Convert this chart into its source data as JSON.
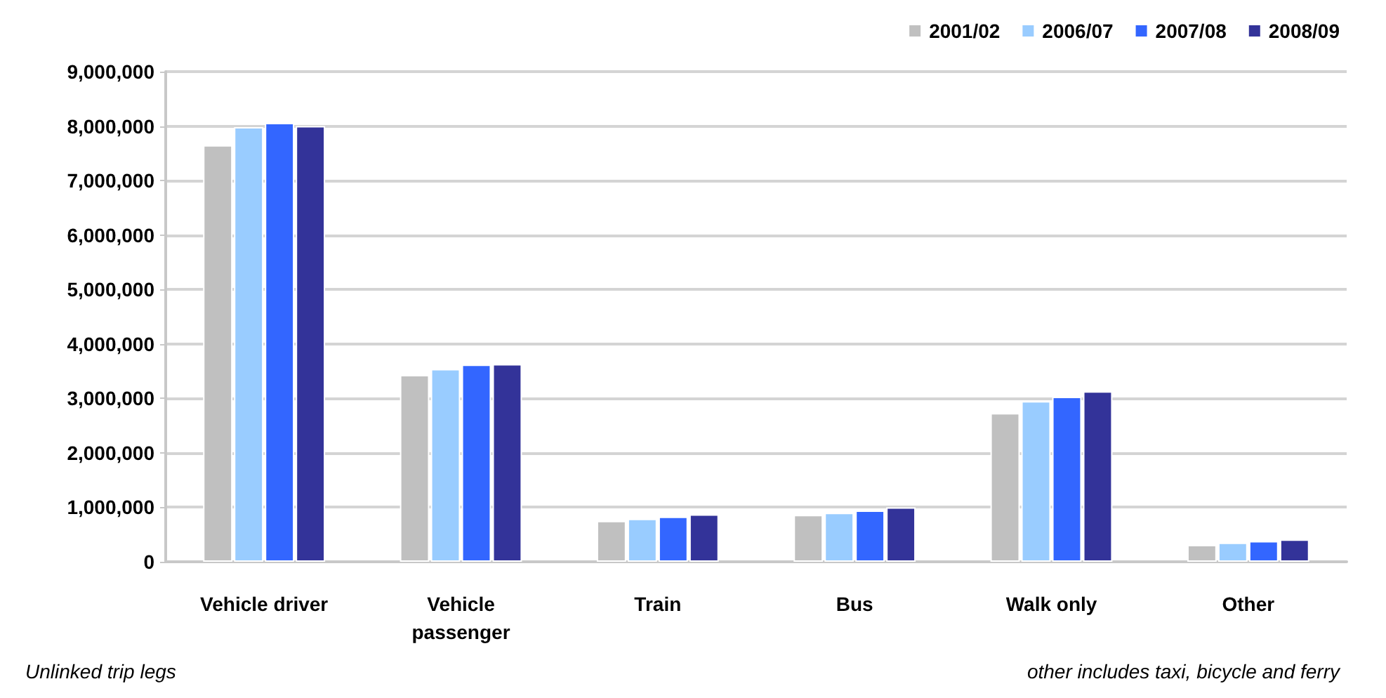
{
  "chart_data": {
    "type": "bar",
    "categories": [
      "Vehicle driver",
      "Vehicle\npassenger",
      "Train",
      "Bus",
      "Walk only",
      "Other"
    ],
    "series": [
      {
        "name": "2001/02",
        "color": "#c0c0c0",
        "values": [
          7650000,
          3430000,
          750000,
          860000,
          2730000,
          310000
        ]
      },
      {
        "name": "2006/07",
        "color": "#99ccff",
        "values": [
          7980000,
          3540000,
          790000,
          900000,
          2950000,
          350000
        ]
      },
      {
        "name": "2007/08",
        "color": "#3366ff",
        "values": [
          8060000,
          3620000,
          830000,
          940000,
          3030000,
          380000
        ]
      },
      {
        "name": "2008/09",
        "color": "#333399",
        "values": [
          8000000,
          3630000,
          870000,
          1000000,
          3130000,
          410000
        ]
      }
    ],
    "ylim": [
      0,
      9000000
    ],
    "yticks": [
      {
        "value": 0,
        "label": "0"
      },
      {
        "value": 1000000,
        "label": "1,000,000"
      },
      {
        "value": 2000000,
        "label": "2,000,000"
      },
      {
        "value": 3000000,
        "label": "3,000,000"
      },
      {
        "value": 4000000,
        "label": "4,000,000"
      },
      {
        "value": 5000000,
        "label": "5,000,000"
      },
      {
        "value": 6000000,
        "label": "6,000,000"
      },
      {
        "value": 7000000,
        "label": "7,000,000"
      },
      {
        "value": 8000000,
        "label": "8,000,000"
      },
      {
        "value": 9000000,
        "label": "9,000,000"
      }
    ],
    "grid": "y",
    "legend": "top right",
    "annotations": [
      "Unlinked trip legs",
      "other includes taxi, bicycle and ferry"
    ]
  }
}
